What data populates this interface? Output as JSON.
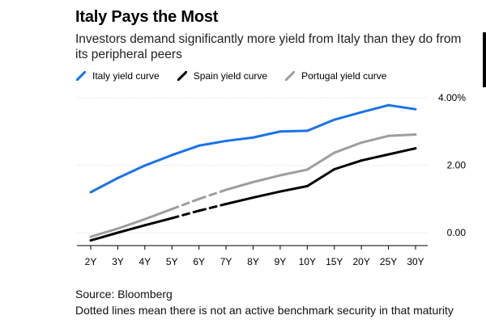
{
  "header": {
    "title": "Italy Pays the Most",
    "subtitle": "Investors demand significantly more yield from Italy than they do from its peripheral peers"
  },
  "footer": {
    "source": "Source: Bloomberg",
    "note": "Dotted lines mean there is not an active benchmark security in that maturity"
  },
  "chart_data": {
    "type": "line",
    "title": "Italy Pays the Most",
    "categories": [
      "2Y",
      "3Y",
      "4Y",
      "5Y",
      "6Y",
      "7Y",
      "8Y",
      "9Y",
      "10Y",
      "15Y",
      "20Y",
      "25Y",
      "30Y"
    ],
    "y_ticks": [
      "4.00%",
      "2.00",
      "0.00"
    ],
    "y_tick_values": [
      4,
      2,
      0
    ],
    "ylim": [
      -0.3,
      4.2
    ],
    "grid": true,
    "legend_position": "top-left",
    "series": [
      {
        "name": "Italy yield curve",
        "color": "#1a73e8",
        "values": [
          1.2,
          1.62,
          1.99,
          2.3,
          2.58,
          2.72,
          2.82,
          3.0,
          3.02,
          3.35,
          3.57,
          3.78,
          3.66
        ],
        "dotted_categories": []
      },
      {
        "name": "Spain yield curve",
        "color": "#000000",
        "values": [
          -0.23,
          0.0,
          0.22,
          0.43,
          0.65,
          0.85,
          1.04,
          1.22,
          1.38,
          1.88,
          2.14,
          2.32,
          2.5
        ],
        "dotted_categories": [
          "5Y",
          "6Y",
          "7Y"
        ]
      },
      {
        "name": "Portugal yield curve",
        "color": "#9e9e9e",
        "values": [
          -0.12,
          0.12,
          0.4,
          0.7,
          1.0,
          1.27,
          1.5,
          1.7,
          1.87,
          2.37,
          2.67,
          2.87,
          2.91
        ],
        "dotted_categories": [
          "5Y",
          "6Y",
          "7Y"
        ]
      }
    ]
  }
}
